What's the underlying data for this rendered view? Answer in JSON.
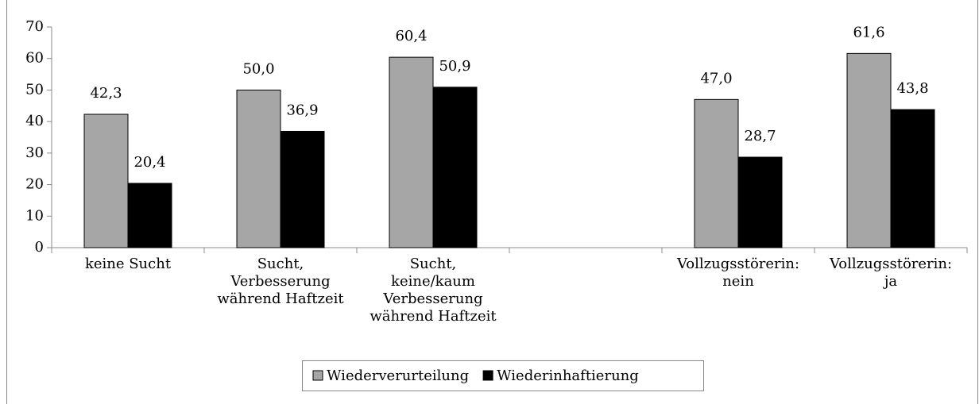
{
  "chart_data": {
    "type": "bar",
    "categories": [
      "keine Sucht",
      "Sucht,\nVerbesserung\nwährend Haftzeit",
      "Sucht,\nkeine/kaum\nVerbesserung\nwährend Haftzeit",
      null,
      "Vollzugsstörerin:\nnein",
      "Vollzugsstörerin:\nja"
    ],
    "series": [
      {
        "name": "Wiederverurteilung",
        "color": "#a6a6a6",
        "values": [
          42.3,
          50.0,
          60.4,
          null,
          47.0,
          61.6
        ],
        "value_labels": [
          "42,3",
          "50,0",
          "60,4",
          null,
          "47,0",
          "61,6"
        ]
      },
      {
        "name": "Wiederinhaftierung",
        "color": "#000000",
        "values": [
          20.4,
          36.9,
          50.9,
          null,
          28.7,
          43.8
        ],
        "value_labels": [
          "20,4",
          "36,9",
          "50,9",
          null,
          "28,7",
          "43,8"
        ]
      }
    ],
    "ylim": [
      0,
      70
    ],
    "yticks": [
      0,
      10,
      20,
      30,
      40,
      50,
      60,
      70
    ],
    "legend": "bottom"
  }
}
